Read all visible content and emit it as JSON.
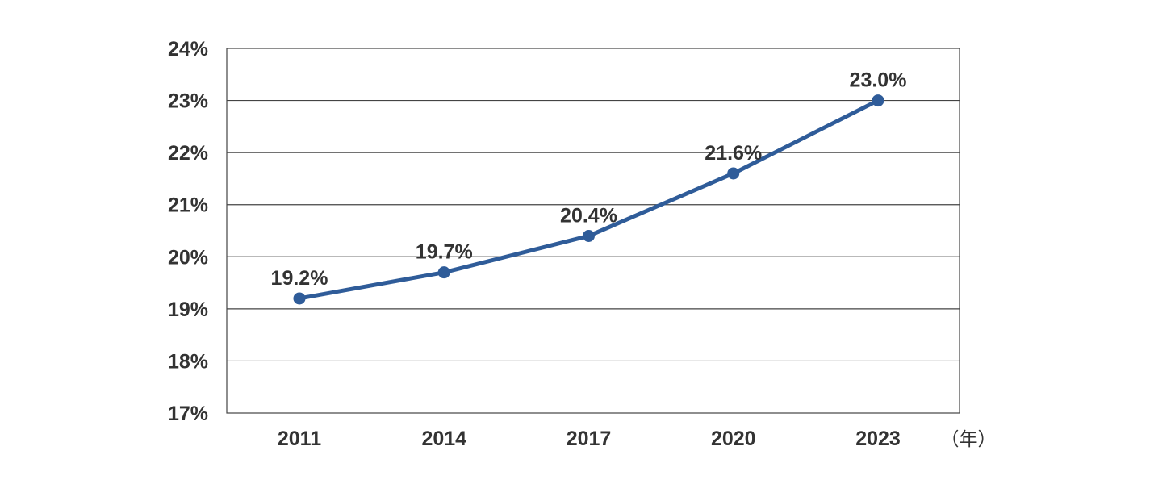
{
  "chart_data": {
    "type": "line",
    "title": "",
    "xlabel": "（年）",
    "ylabel": "",
    "x": [
      "2011",
      "2014",
      "2017",
      "2020",
      "2023"
    ],
    "series": [
      {
        "values": [
          19.2,
          19.7,
          20.4,
          21.6,
          23.0
        ],
        "labels": [
          "19.2%",
          "19.7%",
          "20.4%",
          "21.6%",
          "23.0%"
        ],
        "color": "#2F5C99"
      }
    ],
    "ylim": [
      17,
      24
    ],
    "yticks": [
      17,
      18,
      19,
      20,
      21,
      22,
      23,
      24
    ],
    "ytick_labels": [
      "17%",
      "18%",
      "19%",
      "20%",
      "21%",
      "22%",
      "23%",
      "24%"
    ],
    "grid": true,
    "legend": "none",
    "colors": {
      "line": "#2F5C99",
      "grid": "#444444",
      "text": "#333333"
    }
  }
}
